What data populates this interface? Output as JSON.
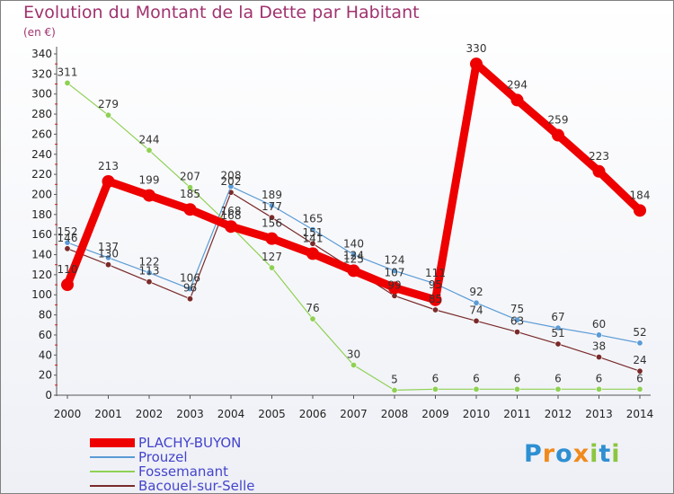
{
  "title": "Evolution du Montant de la Dette par Habitant",
  "unit_label": "(en €)",
  "brand": {
    "text": "Proxiti",
    "letters": [
      {
        "ch": "P",
        "color": "#2e8fd2"
      },
      {
        "ch": "r",
        "color": "#f08a1c"
      },
      {
        "ch": "o",
        "color": "#2e8fd2"
      },
      {
        "ch": "x",
        "color": "#f08a1c"
      },
      {
        "ch": "i",
        "color": "#8cc63f"
      },
      {
        "ch": "t",
        "color": "#2e8fd2"
      },
      {
        "ch": "i",
        "color": "#8cc63f"
      }
    ]
  },
  "chart_data": {
    "type": "line",
    "x": [
      "2000",
      "2001",
      "2002",
      "2003",
      "2004",
      "2005",
      "2006",
      "2007",
      "2008",
      "2009",
      "2010",
      "2011",
      "2012",
      "2013",
      "2014"
    ],
    "ylim": [
      0,
      340
    ],
    "yticks": [
      0,
      20,
      40,
      60,
      80,
      100,
      120,
      140,
      160,
      180,
      200,
      220,
      240,
      260,
      280,
      300,
      320,
      340
    ],
    "grid": false,
    "legend_position": "bottom-left",
    "series": [
      {
        "name": "PLACHY-BUYON",
        "color": "#ee0000",
        "width": 9,
        "marker": 7,
        "values": [
          110,
          213,
          199,
          185,
          168,
          156,
          141,
          124,
          107,
          95,
          330,
          294,
          259,
          223,
          184
        ],
        "labels": [
          "110",
          "213",
          "199",
          "185",
          "168",
          "156",
          "141",
          "124",
          "107",
          "95",
          "330",
          "294",
          "259",
          "223",
          "184"
        ]
      },
      {
        "name": "Prouzel",
        "color": "#5b9bd5",
        "width": 1.2,
        "marker": 3.2,
        "values": [
          152,
          137,
          122,
          106,
          208,
          189,
          165,
          140,
          124,
          111,
          92,
          75,
          67,
          60,
          52
        ],
        "labels": [
          "152",
          "137",
          "122",
          "106",
          "208",
          "189",
          "165",
          "140",
          "124",
          "111",
          "92",
          "75",
          "67",
          "60",
          "52"
        ]
      },
      {
        "name": "Fossemanant",
        "color": "#8fd154",
        "width": 1.2,
        "marker": 3.2,
        "values": [
          311,
          279,
          244,
          207,
          168,
          127,
          76,
          30,
          5,
          6,
          6,
          6,
          6,
          6,
          6
        ],
        "labels": [
          "311",
          "279",
          "244",
          "207",
          "168",
          "127",
          "76",
          "30",
          "5",
          "6",
          "6",
          "6",
          "6",
          "6",
          "6"
        ]
      },
      {
        "name": "Bacouel-sur-Selle",
        "color": "#7a2a2a",
        "width": 1.2,
        "marker": 3.2,
        "values": [
          146,
          130,
          113,
          96,
          202,
          177,
          151,
          125,
          99,
          85,
          74,
          63,
          51,
          38,
          24
        ],
        "labels": [
          "146",
          "130",
          "113",
          "96",
          "202",
          "177",
          "151",
          "125",
          "99",
          "85",
          "74",
          "63",
          "51",
          "38",
          "24"
        ]
      }
    ]
  }
}
